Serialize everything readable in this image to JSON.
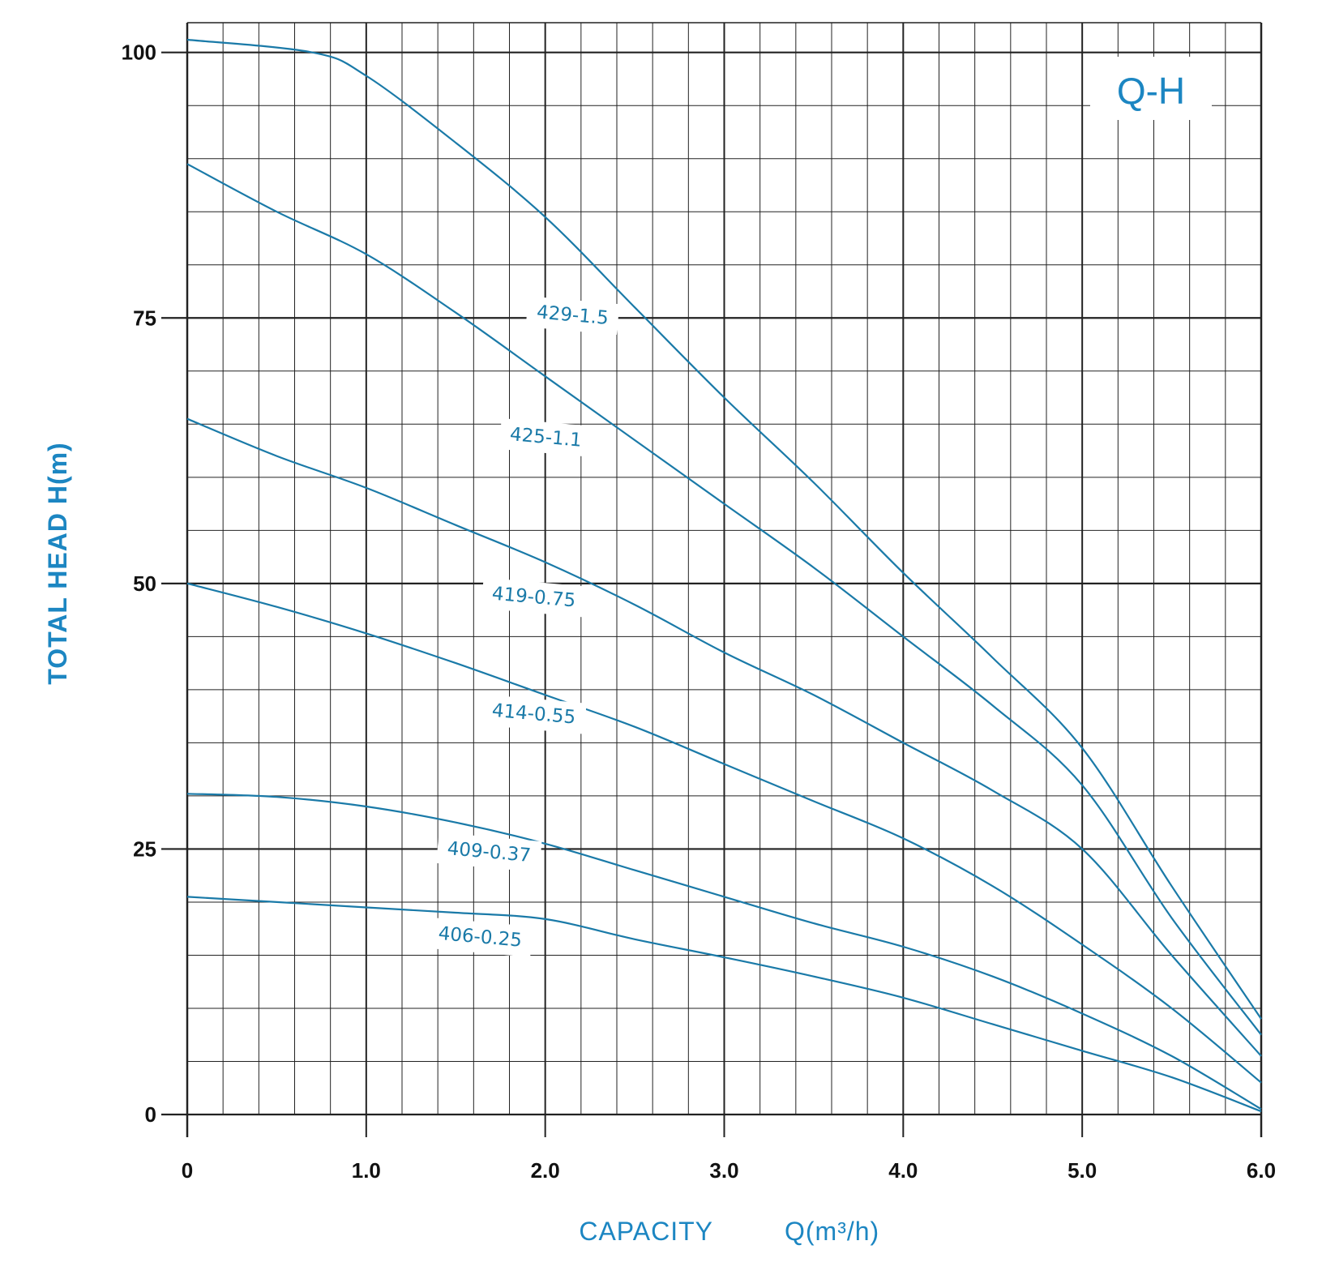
{
  "colors": {
    "curve": "#1a7aa8",
    "accent": "#1c86c2",
    "grid": "#222222",
    "tick_text": "#111111"
  },
  "chart_data": {
    "type": "line",
    "title": "Q-H",
    "xlabel": "CAPACITY",
    "xlabel_unit": "Q(m³/h)",
    "ylabel": "TOTAL HEAD H(m)",
    "xlim": [
      0,
      6
    ],
    "ylim": [
      0,
      102.8
    ],
    "x_ticks": [
      "0",
      "1.0",
      "2.0",
      "3.0",
      "4.0",
      "5.0",
      "6.0"
    ],
    "y_ticks": [
      "0",
      "25",
      "50",
      "75",
      "100"
    ],
    "x_tick_values": [
      0,
      1,
      2,
      3,
      4,
      5,
      6
    ],
    "y_tick_values": [
      0,
      25,
      50,
      75,
      100
    ],
    "grid": true,
    "minor_grid_x": 0.2,
    "minor_grid_y": 5,
    "series": [
      {
        "name": "429-1.5",
        "x": [
          0,
          0.7,
          1.0,
          1.5,
          2.0,
          2.5,
          3.0,
          3.5,
          4.0,
          4.5,
          5.0,
          5.5,
          6.0
        ],
        "y": [
          101.2,
          100.0,
          97.8,
          91.5,
          84.5,
          76.0,
          67.5,
          59.5,
          51.0,
          43.0,
          34.5,
          21.5,
          9.0
        ],
        "label_anchor": [
          1.95,
          75.0
        ]
      },
      {
        "name": "425-1.1",
        "x": [
          0,
          0.5,
          1.0,
          1.5,
          2.0,
          2.5,
          3.0,
          3.5,
          4.0,
          4.5,
          5.0,
          5.5,
          6.0
        ],
        "y": [
          89.5,
          85.0,
          81.0,
          75.5,
          69.5,
          63.5,
          57.5,
          51.5,
          45.0,
          38.5,
          31.0,
          18.5,
          7.5
        ],
        "label_anchor": [
          1.8,
          63.5
        ]
      },
      {
        "name": "419-0.75",
        "x": [
          0,
          0.5,
          1.0,
          1.5,
          2.0,
          2.5,
          3.0,
          3.5,
          4.0,
          4.5,
          5.0,
          5.5,
          6.0
        ],
        "y": [
          65.5,
          62.0,
          59.0,
          55.5,
          52.0,
          48.0,
          43.5,
          39.5,
          35.0,
          30.5,
          25.0,
          15.0,
          5.5
        ],
        "label_anchor": [
          1.7,
          48.5
        ]
      },
      {
        "name": "414-0.55",
        "x": [
          0,
          0.5,
          1.0,
          1.5,
          2.0,
          2.5,
          3.0,
          3.5,
          4.0,
          4.5,
          5.0,
          5.5,
          6.0
        ],
        "y": [
          50.0,
          47.8,
          45.3,
          42.5,
          39.5,
          36.5,
          33.0,
          29.5,
          26.0,
          21.5,
          16.0,
          10.0,
          3.0
        ],
        "label_anchor": [
          1.7,
          37.5
        ]
      },
      {
        "name": "409-0.37",
        "x": [
          0,
          0.5,
          1.0,
          1.5,
          2.0,
          2.5,
          3.0,
          3.5,
          4.0,
          4.5,
          5.0,
          5.5,
          6.0
        ],
        "y": [
          30.2,
          29.9,
          29.0,
          27.5,
          25.5,
          23.0,
          20.5,
          18.0,
          15.8,
          13.0,
          9.5,
          5.5,
          0.5
        ],
        "label_anchor": [
          1.45,
          24.5
        ]
      },
      {
        "name": "406-0.25",
        "x": [
          0,
          0.5,
          1.0,
          1.5,
          2.0,
          2.5,
          3.0,
          3.5,
          4.0,
          4.5,
          5.0,
          5.5,
          6.0
        ],
        "y": [
          20.5,
          20.0,
          19.5,
          19.0,
          18.4,
          16.5,
          14.8,
          13.0,
          11.0,
          8.5,
          6.0,
          3.5,
          0.3
        ],
        "label_anchor": [
          1.4,
          16.5
        ]
      }
    ]
  }
}
